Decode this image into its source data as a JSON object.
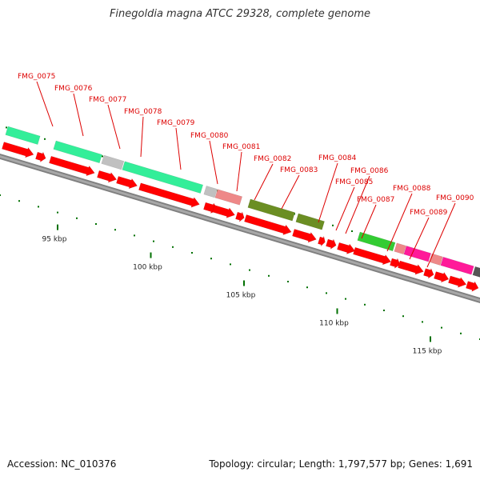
{
  "title": "Finegoldia magna ATCC 29328, complete genome",
  "footer": {
    "accession": "Accession: NC_010376",
    "topology": "Topology: circular; Length: 1,797,577 bp; Genes: 1,691"
  },
  "colors": {
    "cds": "#ff0000",
    "backbone": "#808080",
    "gene_label": "#dd0000",
    "tick": "#007000",
    "feature_teal": "#33ee99",
    "feature_gray": "#c0c0c0",
    "feature_pink": "#ee8888",
    "feature_olive": "#6b8e23",
    "feature_green": "#33cc33",
    "feature_magenta": "#ff1a99",
    "feature_dark": "#555555"
  },
  "scale_labels": [
    {
      "text": "95 kbp",
      "kbp": 95
    },
    {
      "text": "100 kbp",
      "kbp": 100
    },
    {
      "text": "105 kbp",
      "kbp": 105
    },
    {
      "text": "110 kbp",
      "kbp": 110
    },
    {
      "text": "115 kbp",
      "kbp": 115
    }
  ],
  "gene_labels": [
    {
      "text": "FMG_0075"
    },
    {
      "text": "FMG_0076"
    },
    {
      "text": "FMG_0077"
    },
    {
      "text": "FMG_0078"
    },
    {
      "text": "FMG_0079"
    },
    {
      "text": "FMG_0080"
    },
    {
      "text": "FMG_0081"
    },
    {
      "text": "FMG_0082"
    },
    {
      "text": "FMG_0083"
    },
    {
      "text": "FMG_0084"
    },
    {
      "text": "FMG_0085"
    },
    {
      "text": "FMG_0086"
    },
    {
      "text": "FMG_0087"
    },
    {
      "text": "FMG_0088"
    },
    {
      "text": "FMG_0089"
    },
    {
      "text": "FMG_0090"
    }
  ]
}
